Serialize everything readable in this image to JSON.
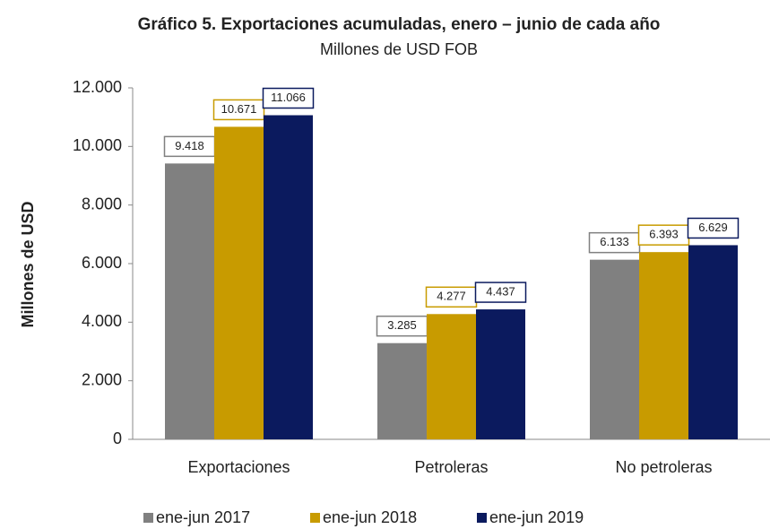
{
  "chart_data": {
    "type": "bar",
    "title": "Gráfico 5. Exportaciones acumuladas, enero – junio de cada año",
    "subtitle": "Millones de USD FOB",
    "y_label": "Millones de USD",
    "categories": [
      "Exportaciones",
      "Petroleras",
      "No petroleras"
    ],
    "series": [
      {
        "name": "ene-jun 2017",
        "color": "#808080",
        "values": [
          9418,
          3285,
          6133
        ],
        "value_labels": [
          "9.418",
          "3.285",
          "6.133"
        ]
      },
      {
        "name": "ene-jun 2018",
        "color": "#c89b00",
        "values": [
          10671,
          4277,
          6393
        ],
        "value_labels": [
          "10.671",
          "4.277",
          "6.393"
        ]
      },
      {
        "name": "ene-jun 2019",
        "color": "#0b1a5e",
        "values": [
          11066,
          4437,
          6629
        ],
        "value_labels": [
          "11.066",
          "4.437",
          "6.629"
        ]
      }
    ],
    "ylim": [
      0,
      12000
    ],
    "yticks": [
      0,
      {
        "value": 2000,
        "label": "2.000"
      },
      {
        "value": 4000,
        "label": "4.000"
      },
      {
        "value": 6000,
        "label": "6.000"
      },
      {
        "value": 8000,
        "label": "8.000"
      },
      {
        "value": 10000,
        "label": "10.000"
      },
      {
        "value": 12000,
        "label": "12.000"
      }
    ],
    "legend": "bottom"
  }
}
